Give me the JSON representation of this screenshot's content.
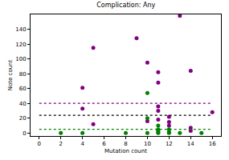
{
  "chart_data": {
    "type": "scatter",
    "title": "Complication: Any",
    "x_label": "Mutation count",
    "y_label": "Note count",
    "xlim": [
      -0.8,
      16.8
    ],
    "ylim": [
      -4,
      160
    ],
    "xticks": [
      0,
      2,
      4,
      6,
      8,
      10,
      12,
      14,
      16
    ],
    "yticks": [
      0,
      20,
      40,
      60,
      80,
      100,
      120,
      140
    ],
    "grid": false,
    "series": [
      {
        "type": "scatter",
        "marker": "circle",
        "color": "#800080",
        "x": [
          13,
          9,
          5,
          10,
          11,
          14,
          11,
          4,
          4,
          11,
          11,
          12,
          12,
          12,
          16,
          5,
          10,
          14,
          14,
          11
        ],
        "values": [
          158,
          128,
          115,
          95,
          82,
          84,
          68,
          61,
          33,
          36,
          30,
          22,
          15,
          10,
          28,
          12,
          16,
          7,
          3,
          18
        ]
      },
      {
        "type": "scatter",
        "marker": "circle",
        "color": "#008000",
        "x": [
          2,
          4,
          8,
          10,
          10,
          11,
          11,
          11,
          11,
          11,
          12,
          12,
          12,
          13,
          15,
          10
        ],
        "values": [
          0,
          0,
          0,
          54,
          20,
          10,
          5,
          3,
          1,
          0,
          1,
          5,
          0,
          0,
          0,
          0
        ]
      },
      {
        "type": "line",
        "line_style": "dotted",
        "color": "#800080",
        "x": [
          0,
          16
        ],
        "values": [
          40,
          40
        ]
      },
      {
        "type": "line",
        "line_style": "dotted",
        "color": "#000000",
        "x": [
          0,
          16
        ],
        "values": [
          24,
          24
        ]
      },
      {
        "type": "line",
        "line_style": "dotted",
        "color": "#008000",
        "x": [
          0,
          16
        ],
        "values": [
          5,
          5
        ]
      }
    ]
  }
}
